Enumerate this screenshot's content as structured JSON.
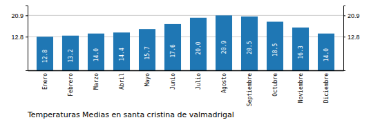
{
  "chart_data": {
    "type": "bar",
    "title": "Temperaturas Medias en santa cristina de valmadrigal",
    "categories": [
      "Enero",
      "Febrero",
      "Marzo",
      "Abril",
      "Mayo",
      "Junio",
      "Julio",
      "Agosto",
      "Septiembre",
      "Octubre",
      "Noviembre",
      "Diciembre"
    ],
    "values": [
      12.8,
      13.2,
      14.0,
      14.4,
      15.7,
      17.6,
      20.0,
      20.9,
      20.5,
      18.5,
      16.3,
      14.0
    ],
    "value_labels": [
      "12.8",
      "13.2",
      "14.0",
      "14.4",
      "15.7",
      "17.6",
      "20.0",
      "20.9",
      "20.5",
      "18.5",
      "16.3",
      "14.0"
    ],
    "ylim": [
      0,
      24.662
    ],
    "yticks": [
      12.8,
      20.9
    ],
    "y2lim": [
      0,
      24.662
    ],
    "y2ticks": [
      12.8,
      20.9
    ],
    "grid": true,
    "data_labels": true
  }
}
